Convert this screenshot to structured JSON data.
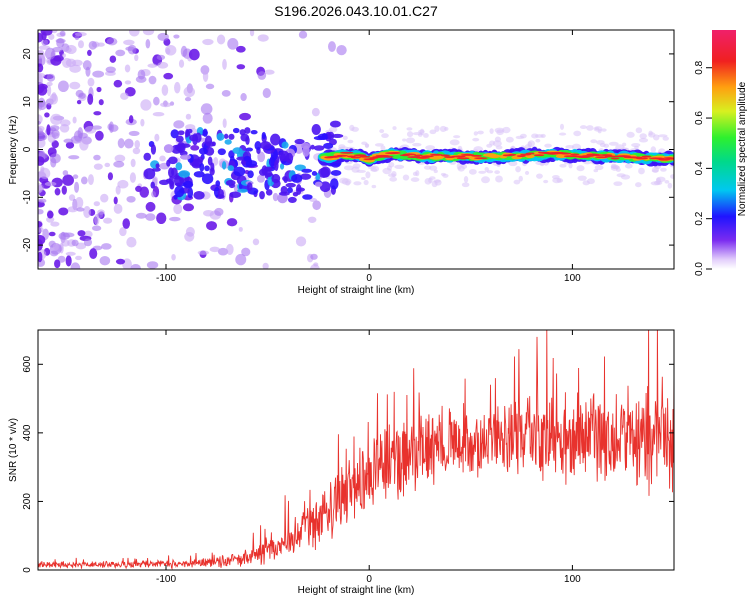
{
  "page_title": "S196.2026.043.10.01.C27",
  "chart_data": [
    {
      "type": "heatmap",
      "title": "S196.2026.043.10.01.C27",
      "xlabel": "Height of straight line (km)",
      "ylabel": "Frequency (Hz)",
      "xlim": [
        -163,
        150
      ],
      "ylim": [
        -25,
        25
      ],
      "xticks": [
        -100,
        0,
        100
      ],
      "yticks": [
        -20,
        -10,
        0,
        10,
        20
      ],
      "colorbar": {
        "label": "Normalized spectral amplitude",
        "range": [
          0,
          0.95
        ],
        "ticks": [
          "0.0",
          "0.2",
          "0.4",
          "0.6",
          "0.8"
        ]
      },
      "ridge": [
        {
          "x": -75,
          "y": -3
        },
        {
          "x": -50,
          "y": -3
        },
        {
          "x": -35,
          "y": -5
        },
        {
          "x": -25,
          "y": -2
        },
        {
          "x": -10,
          "y": -1
        },
        {
          "x": 0,
          "y": -2
        },
        {
          "x": 10,
          "y": -1
        },
        {
          "x": 30,
          "y": -1.5
        },
        {
          "x": 60,
          "y": -1.5
        },
        {
          "x": 90,
          "y": -1
        },
        {
          "x": 120,
          "y": -1.5
        },
        {
          "x": 150,
          "y": -2
        }
      ]
    },
    {
      "type": "line",
      "xlabel": "Height of straight line (km)",
      "ylabel": "SNR (10 * v/v)",
      "xlim": [
        -163,
        150
      ],
      "ylim": [
        0,
        700
      ],
      "xticks": [
        -100,
        0,
        100
      ],
      "yticks": [
        0,
        200,
        400,
        600
      ],
      "color": "#e8322d",
      "envelope": [
        {
          "x": -163,
          "mean": 15,
          "spread": 12
        },
        {
          "x": -120,
          "mean": 15,
          "spread": 12
        },
        {
          "x": -90,
          "mean": 18,
          "spread": 15
        },
        {
          "x": -70,
          "mean": 25,
          "spread": 20
        },
        {
          "x": -55,
          "mean": 45,
          "spread": 40
        },
        {
          "x": -40,
          "mean": 80,
          "spread": 60
        },
        {
          "x": -25,
          "mean": 140,
          "spread": 90
        },
        {
          "x": -10,
          "mean": 230,
          "spread": 120
        },
        {
          "x": 5,
          "mean": 300,
          "spread": 130
        },
        {
          "x": 20,
          "mean": 340,
          "spread": 130
        },
        {
          "x": 40,
          "mean": 370,
          "spread": 130
        },
        {
          "x": 60,
          "mean": 380,
          "spread": 130
        },
        {
          "x": 80,
          "mean": 380,
          "spread": 140
        },
        {
          "x": 100,
          "mean": 390,
          "spread": 160
        },
        {
          "x": 120,
          "mean": 390,
          "spread": 170
        },
        {
          "x": 150,
          "mean": 380,
          "spread": 200
        }
      ]
    }
  ]
}
